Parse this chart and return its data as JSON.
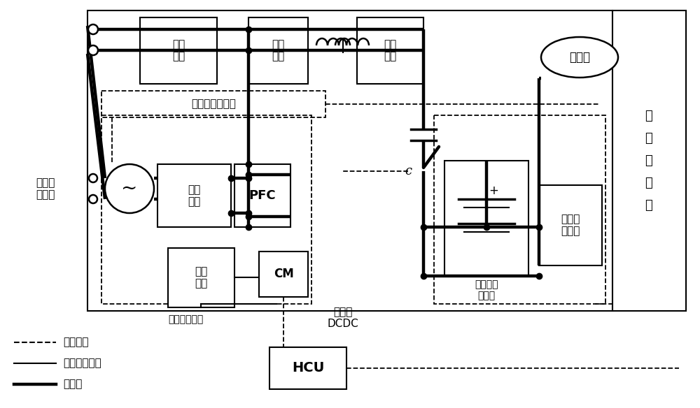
{
  "bg": "#ffffff",
  "lc": "#000000",
  "texts": {
    "jiaoliu": "交流充\n电接口",
    "fanghu": "防护\n电路",
    "zhanbo": "斩波\n电路",
    "zhengliu1": "整流\n电路",
    "zhengliu2": "整流\n电路",
    "pfc": "PFC",
    "jidian": "集电杆动作信号",
    "chargepow": "充电\n供电",
    "cm": "CM",
    "chargecfm": "充电确认信号",
    "isolation": "隔离式\nDCDC",
    "battery": "电池及管\n理系统",
    "gaoya": "高压用\n电系统",
    "hcu": "HCU",
    "zhiliu": "直流充",
    "pure_ev": "纯\n电\n动\n系\n统",
    "legend_dashed": "控制信号",
    "legend_thin": "低压控制信号",
    "legend_thick": "功率线"
  },
  "fs": 11,
  "sfs": 10,
  "pw": 3.2,
  "tw": 1.5,
  "dw": 1.3
}
